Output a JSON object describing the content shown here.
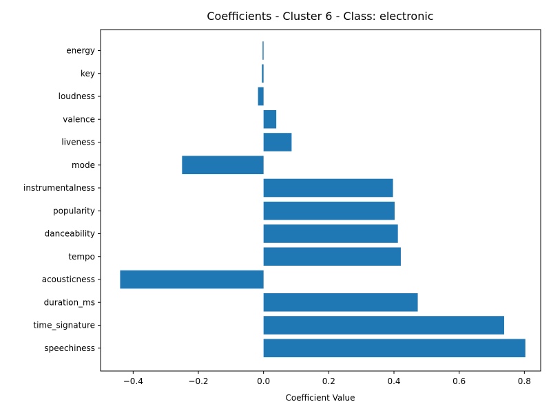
{
  "chart_data": {
    "type": "bar",
    "orientation": "horizontal",
    "title": "Coefficients - Cluster 6 - Class: electronic",
    "xlabel": "Coefficient Value",
    "ylabel": "",
    "xlim": [
      -0.5,
      0.85
    ],
    "x_ticks": [
      -0.4,
      -0.2,
      0.0,
      0.2,
      0.4,
      0.6,
      0.8
    ],
    "x_tick_labels": [
      "−0.4",
      "−0.2",
      "0.0",
      "0.2",
      "0.4",
      "0.6",
      "0.8"
    ],
    "categories": [
      "energy",
      "key",
      "loudness",
      "valence",
      "liveness",
      "mode",
      "instrumentalness",
      "popularity",
      "danceability",
      "tempo",
      "acousticness",
      "duration_ms",
      "time_signature",
      "speechiness"
    ],
    "values": [
      -0.003,
      -0.005,
      -0.017,
      0.039,
      0.086,
      -0.25,
      0.397,
      0.402,
      0.412,
      0.421,
      -0.44,
      0.473,
      0.738,
      0.803
    ],
    "bar_color": "#1f77b4",
    "grid": false,
    "legend": "none"
  }
}
